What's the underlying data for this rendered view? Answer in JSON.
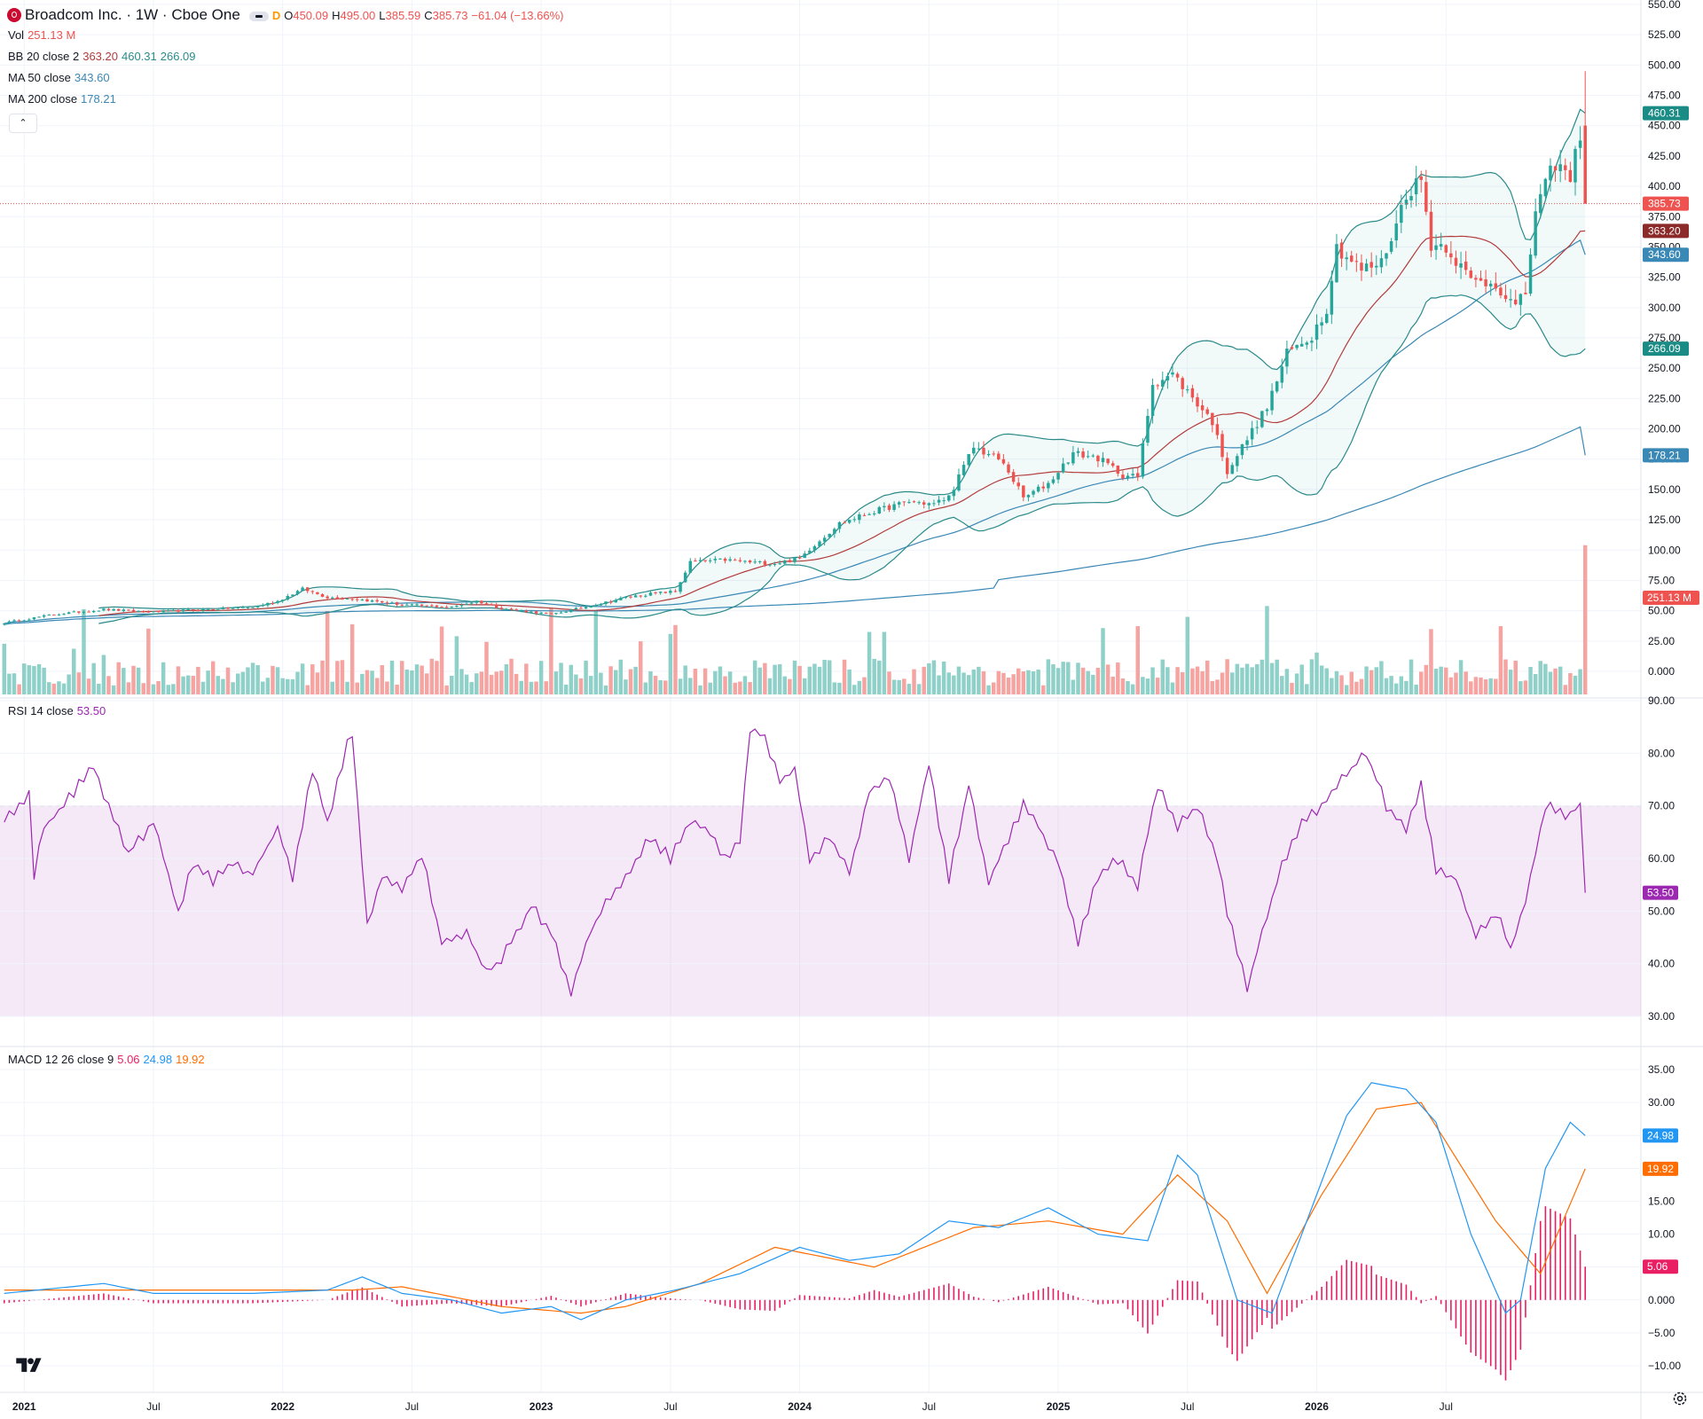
{
  "header": {
    "symbol_title": "Broadcom Inc. · 1W · Cboe One",
    "interval_flag": "D",
    "open_label": "O",
    "open": "450.09",
    "high_label": "H",
    "high": "495.00",
    "low_label": "L",
    "low": "385.59",
    "close_label": "C",
    "close": "385.73",
    "change": "−61.04 (−13.66%)"
  },
  "indicators": {
    "vol": {
      "label": "Vol",
      "value": "251.13 M"
    },
    "bb": {
      "label": "BB 20 close 2",
      "basis": "363.20",
      "upper": "460.31",
      "lower": "266.09"
    },
    "ma50": {
      "label": "MA 50 close",
      "value": "343.60"
    },
    "ma200": {
      "label": "MA 200 close",
      "value": "178.21"
    },
    "rsi": {
      "label": "RSI 14 close",
      "value": "53.50"
    },
    "macd": {
      "label": "MACD 12 26 close 9",
      "hist": "5.06",
      "macd": "24.98",
      "signal": "19.92"
    }
  },
  "colors": {
    "up": "#26a69a",
    "down": "#ef5350",
    "bb": "#2a8a8a",
    "basis": "#b23b3b",
    "ma50": "#3a88b5",
    "ma200": "#3a88b5",
    "rsi": "#9c27b0",
    "macd": "#2196f3",
    "signal": "#ff6d00",
    "hist": "#e91e63"
  },
  "price_labels": {
    "last": "385.73",
    "upper": "460.31",
    "basis": "363.20",
    "ma50": "343.60",
    "lower": "266.09",
    "ma200": "178.21",
    "vol": "251.13 M"
  },
  "chart_data": [
    {
      "type": "candlestick",
      "title": "Broadcom Inc. · 1W · Cboe One",
      "x_axis": {
        "labels": [
          "2021",
          "Jul",
          "2022",
          "Jul",
          "2023",
          "Jul",
          "2024",
          "Jul",
          "2025",
          "Jul",
          "2026",
          "Jul"
        ]
      },
      "y_axis": {
        "range": [
          -25,
          550
        ],
        "ticks": [
          "550.00",
          "525.00",
          "500.00",
          "475.00",
          "450.00",
          "425.00",
          "400.00",
          "375.00",
          "350.00",
          "325.00",
          "300.00",
          "275.00",
          "250.00",
          "225.00",
          "200.00",
          "175.00",
          "150.00",
          "125.00",
          "100.00",
          "75.00",
          "50.00",
          "25.00",
          "0.000"
        ]
      },
      "last_bar": {
        "open": 450.09,
        "high": 495.0,
        "low": 385.59,
        "close": 385.73
      },
      "anchors_close": [
        [
          0,
          40
        ],
        [
          10,
          47
        ],
        [
          20,
          51
        ],
        [
          30,
          49
        ],
        [
          40,
          51
        ],
        [
          50,
          53
        ],
        [
          55,
          58
        ],
        [
          60,
          68
        ],
        [
          65,
          61
        ],
        [
          70,
          60
        ],
        [
          80,
          55
        ],
        [
          90,
          53
        ],
        [
          95,
          58
        ],
        [
          100,
          52
        ],
        [
          110,
          47
        ],
        [
          120,
          56
        ],
        [
          125,
          61
        ],
        [
          130,
          64
        ],
        [
          135,
          66
        ],
        [
          138,
          90
        ],
        [
          145,
          92
        ],
        [
          150,
          90
        ],
        [
          155,
          89
        ],
        [
          160,
          93
        ],
        [
          162,
          101
        ],
        [
          168,
          122
        ],
        [
          175,
          132
        ],
        [
          182,
          140
        ],
        [
          187,
          138
        ],
        [
          190,
          144
        ],
        [
          195,
          185
        ],
        [
          200,
          175
        ],
        [
          202,
          165
        ],
        [
          205,
          143
        ],
        [
          210,
          155
        ],
        [
          215,
          180
        ],
        [
          220,
          176
        ],
        [
          225,
          162
        ],
        [
          228,
          160
        ],
        [
          231,
          238
        ],
        [
          235,
          245
        ],
        [
          239,
          226
        ],
        [
          243,
          206
        ],
        [
          246,
          165
        ],
        [
          249,
          185
        ],
        [
          254,
          218
        ],
        [
          258,
          262
        ],
        [
          263,
          277
        ],
        [
          266,
          300
        ],
        [
          268,
          350
        ],
        [
          273,
          331
        ],
        [
          277,
          337
        ],
        [
          280,
          369
        ],
        [
          282,
          395
        ],
        [
          285,
          405
        ],
        [
          287,
          352
        ],
        [
          290,
          351
        ],
        [
          295,
          322
        ],
        [
          300,
          320
        ],
        [
          304,
          300
        ],
        [
          306,
          312
        ],
        [
          308,
          380
        ],
        [
          312,
          420
        ],
        [
          315,
          405
        ],
        [
          317,
          445
        ],
        [
          318,
          385.73
        ]
      ],
      "volume_millions_approx": "per-week volume bars, last bar 251.13",
      "series": [
        {
          "name": "BB 20 close 2 basis",
          "last": 363.2
        },
        {
          "name": "BB upper",
          "last": 460.31
        },
        {
          "name": "BB lower",
          "last": 266.09
        },
        {
          "name": "MA 50 close",
          "last": 343.6
        },
        {
          "name": "MA 200 close",
          "last": 178.21
        }
      ]
    },
    {
      "type": "line",
      "title": "RSI 14 close",
      "y_axis": {
        "range": [
          30,
          90
        ],
        "ticks": [
          "90.00",
          "80.00",
          "70.00",
          "60.00",
          "50.00",
          "40.00",
          "30.00"
        ]
      },
      "band": [
        30,
        70
      ],
      "anchors": [
        [
          0,
          67
        ],
        [
          5,
          72
        ],
        [
          6,
          57
        ],
        [
          8,
          66
        ],
        [
          12,
          70
        ],
        [
          18,
          78
        ],
        [
          20,
          72
        ],
        [
          25,
          61
        ],
        [
          30,
          67
        ],
        [
          35,
          50
        ],
        [
          38,
          59
        ],
        [
          42,
          56
        ],
        [
          46,
          59
        ],
        [
          50,
          57
        ],
        [
          55,
          66
        ],
        [
          58,
          56
        ],
        [
          62,
          77
        ],
        [
          65,
          67
        ],
        [
          69,
          82
        ],
        [
          70,
          84
        ],
        [
          73,
          47
        ],
        [
          76,
          57
        ],
        [
          80,
          54
        ],
        [
          84,
          61
        ],
        [
          88,
          44
        ],
        [
          93,
          46
        ],
        [
          97,
          38
        ],
        [
          100,
          41
        ],
        [
          106,
          51
        ],
        [
          110,
          46
        ],
        [
          114,
          35
        ],
        [
          118,
          46
        ],
        [
          120,
          50
        ],
        [
          125,
          57
        ],
        [
          130,
          64
        ],
        [
          134,
          60
        ],
        [
          138,
          67
        ],
        [
          142,
          65
        ],
        [
          145,
          60
        ],
        [
          148,
          63
        ],
        [
          150,
          85
        ],
        [
          153,
          83
        ],
        [
          156,
          75
        ],
        [
          159,
          77
        ],
        [
          162,
          60
        ],
        [
          166,
          64
        ],
        [
          170,
          57
        ],
        [
          174,
          73
        ],
        [
          178,
          75
        ],
        [
          182,
          60
        ],
        [
          186,
          78
        ],
        [
          190,
          56
        ],
        [
          194,
          74
        ],
        [
          198,
          55
        ],
        [
          200,
          60
        ],
        [
          205,
          70
        ],
        [
          208,
          66
        ],
        [
          212,
          59
        ],
        [
          216,
          44
        ],
        [
          220,
          57
        ],
        [
          224,
          60
        ],
        [
          228,
          55
        ],
        [
          232,
          74
        ],
        [
          236,
          66
        ],
        [
          240,
          70
        ],
        [
          244,
          60
        ],
        [
          246,
          50
        ],
        [
          250,
          35
        ],
        [
          253,
          46
        ],
        [
          257,
          59
        ],
        [
          261,
          67
        ],
        [
          265,
          70
        ],
        [
          270,
          76
        ],
        [
          274,
          80
        ],
        [
          278,
          70
        ],
        [
          282,
          65
        ],
        [
          285,
          74
        ],
        [
          288,
          58
        ],
        [
          292,
          56
        ],
        [
          296,
          45
        ],
        [
          300,
          50
        ],
        [
          303,
          43
        ],
        [
          306,
          52
        ],
        [
          310,
          70
        ],
        [
          314,
          68
        ],
        [
          317,
          70
        ],
        [
          318,
          53.5
        ]
      ]
    },
    {
      "type": "line",
      "title": "MACD 12 26 close 9",
      "y_axis": {
        "range": [
          -12,
          37
        ],
        "ticks": [
          "35.00",
          "30.00",
          "25.00",
          "20.00",
          "15.00",
          "10.00",
          "5.00",
          "0.000",
          "-5.00",
          "-10.00"
        ]
      },
      "macd_anchors": [
        [
          0,
          1
        ],
        [
          20,
          2.5
        ],
        [
          30,
          1
        ],
        [
          50,
          1
        ],
        [
          65,
          1.5
        ],
        [
          72,
          3.5
        ],
        [
          80,
          1
        ],
        [
          90,
          0
        ],
        [
          100,
          -2
        ],
        [
          110,
          -1
        ],
        [
          116,
          -3
        ],
        [
          125,
          0
        ],
        [
          135,
          1.5
        ],
        [
          148,
          4
        ],
        [
          160,
          8
        ],
        [
          170,
          6
        ],
        [
          180,
          7
        ],
        [
          190,
          12
        ],
        [
          200,
          11
        ],
        [
          210,
          14
        ],
        [
          220,
          10
        ],
        [
          230,
          9
        ],
        [
          236,
          22
        ],
        [
          240,
          19
        ],
        [
          248,
          0
        ],
        [
          255,
          -2
        ],
        [
          262,
          12
        ],
        [
          270,
          28
        ],
        [
          275,
          33
        ],
        [
          282,
          32
        ],
        [
          288,
          27
        ],
        [
          295,
          10
        ],
        [
          302,
          -2
        ],
        [
          305,
          0
        ],
        [
          310,
          20
        ],
        [
          315,
          27
        ],
        [
          318,
          24.98
        ]
      ],
      "signal_anchors": [
        [
          0,
          1.5
        ],
        [
          30,
          1.5
        ],
        [
          70,
          1.5
        ],
        [
          80,
          2
        ],
        [
          100,
          -1
        ],
        [
          116,
          -2
        ],
        [
          125,
          -1
        ],
        [
          140,
          2.5
        ],
        [
          155,
          8
        ],
        [
          175,
          5
        ],
        [
          195,
          11
        ],
        [
          210,
          12
        ],
        [
          225,
          10
        ],
        [
          236,
          19
        ],
        [
          246,
          12
        ],
        [
          254,
          1
        ],
        [
          265,
          16
        ],
        [
          276,
          29
        ],
        [
          285,
          30
        ],
        [
          300,
          12
        ],
        [
          309,
          4
        ],
        [
          318,
          19.92
        ]
      ],
      "histogram_last": 5.06
    }
  ]
}
